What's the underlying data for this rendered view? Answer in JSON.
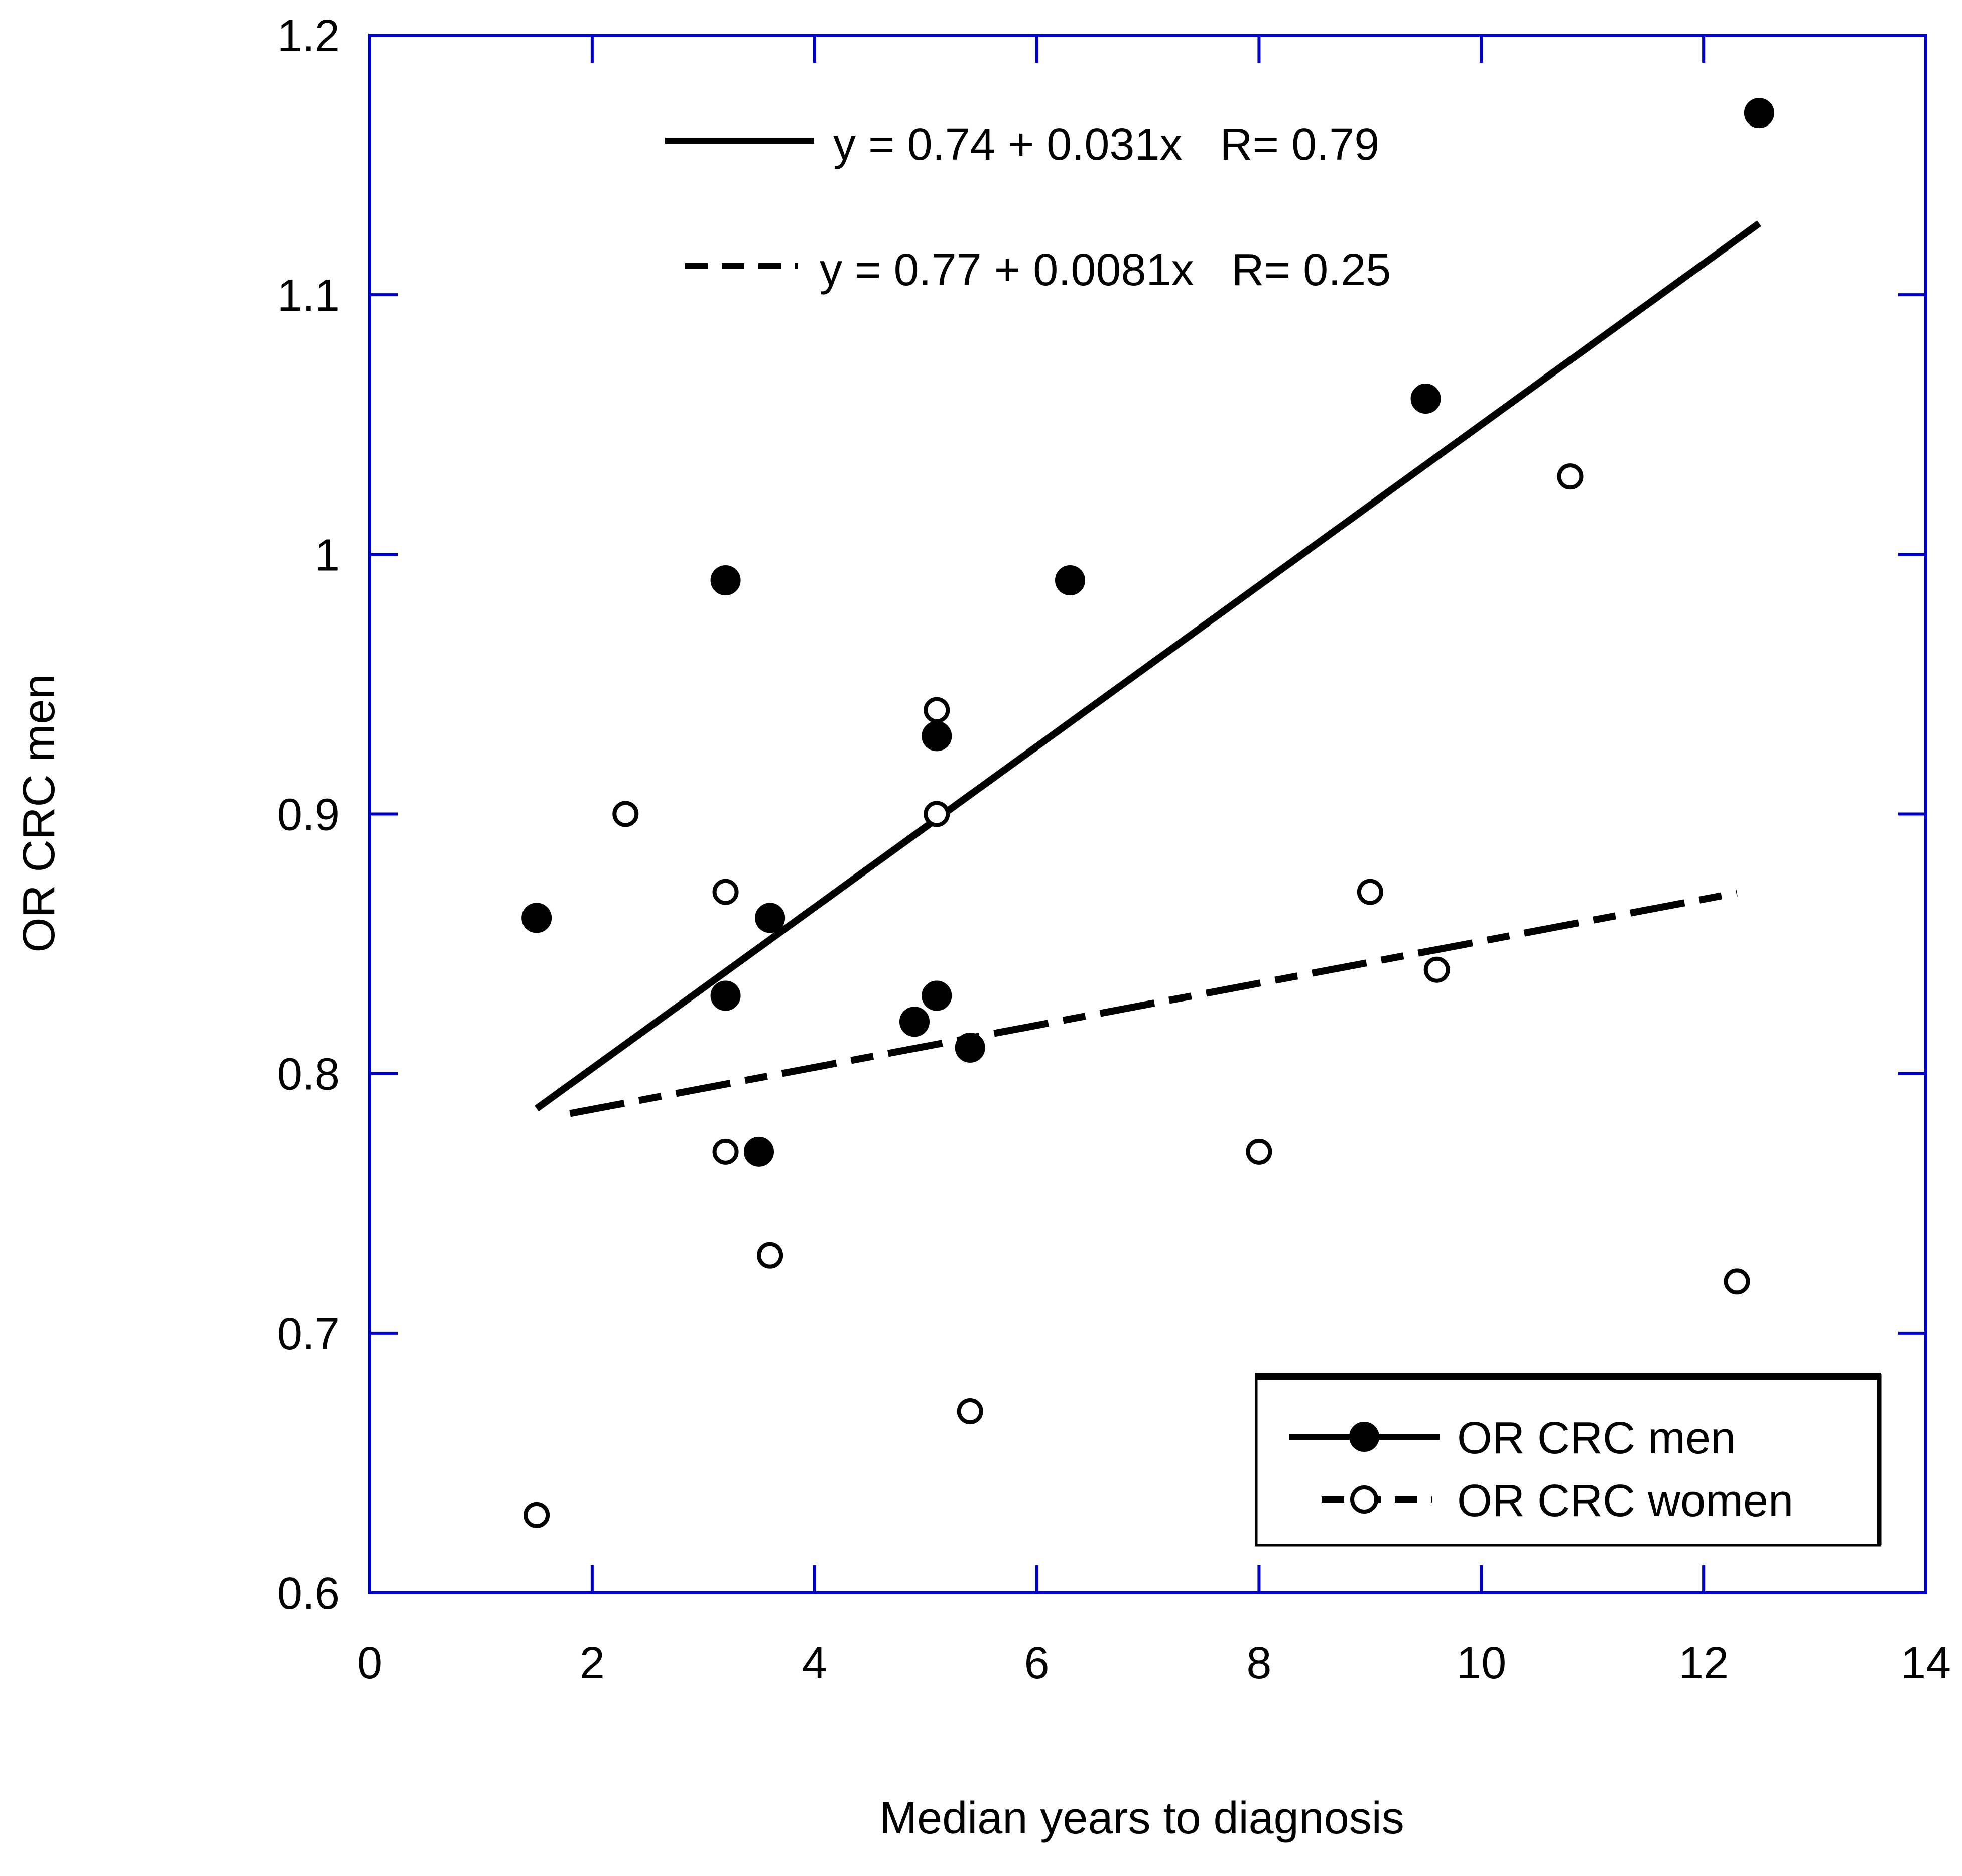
{
  "chart_data": {
    "type": "scatter",
    "xlabel": "Median years to diagnosis",
    "ylabel": "OR CRC men",
    "xlim": [
      0,
      14
    ],
    "ylim": [
      0.6,
      1.2
    ],
    "x_ticks": [
      "0",
      "2",
      "4",
      "6",
      "8",
      "10",
      "12",
      "14"
    ],
    "y_ticks": [
      "0.6",
      "0.7",
      "0.8",
      "0.9",
      "1",
      "1.1",
      "1.2"
    ],
    "x_tick_values": [
      0,
      2,
      4,
      6,
      8,
      10,
      12,
      14
    ],
    "y_tick_values": [
      0.6,
      0.7,
      0.8,
      0.9,
      1.0,
      1.1,
      1.2
    ],
    "grid": false,
    "axis_color": "#0000cc",
    "legend_position": "bottom-right",
    "series": [
      {
        "name": "OR CRC men",
        "marker": "filled-circle",
        "line_style": "solid",
        "points": [
          [
            1.5,
            0.86
          ],
          [
            3.2,
            0.99
          ],
          [
            3.2,
            0.83
          ],
          [
            3.5,
            0.77
          ],
          [
            3.6,
            0.86
          ],
          [
            4.9,
            0.82
          ],
          [
            5.1,
            0.93
          ],
          [
            5.1,
            0.83
          ],
          [
            5.4,
            0.81
          ],
          [
            6.3,
            0.99
          ],
          [
            9.5,
            1.06
          ],
          [
            12.5,
            1.17
          ]
        ],
        "fit": {
          "intercept": 0.74,
          "slope": 0.031,
          "x_range": [
            1.5,
            12.5
          ]
        }
      },
      {
        "name": "OR CRC women",
        "marker": "open-circle",
        "line_style": "dashed",
        "points": [
          [
            1.5,
            0.63
          ],
          [
            2.3,
            0.9
          ],
          [
            3.2,
            0.87
          ],
          [
            3.2,
            0.77
          ],
          [
            3.6,
            0.73
          ],
          [
            5.1,
            0.94
          ],
          [
            5.1,
            0.9
          ],
          [
            5.4,
            0.67
          ],
          [
            8.0,
            0.77
          ],
          [
            9.0,
            0.87
          ],
          [
            9.6,
            0.84
          ],
          [
            10.8,
            1.03
          ],
          [
            12.3,
            0.72
          ]
        ],
        "fit": {
          "intercept": 0.77,
          "slope": 0.0081,
          "x_range": [
            1.8,
            12.3
          ]
        }
      }
    ],
    "annotations": [
      "y = 0.74 + 0.031x   R= 0.79",
      "y = 0.77 + 0.0081x   R= 0.25"
    ]
  }
}
